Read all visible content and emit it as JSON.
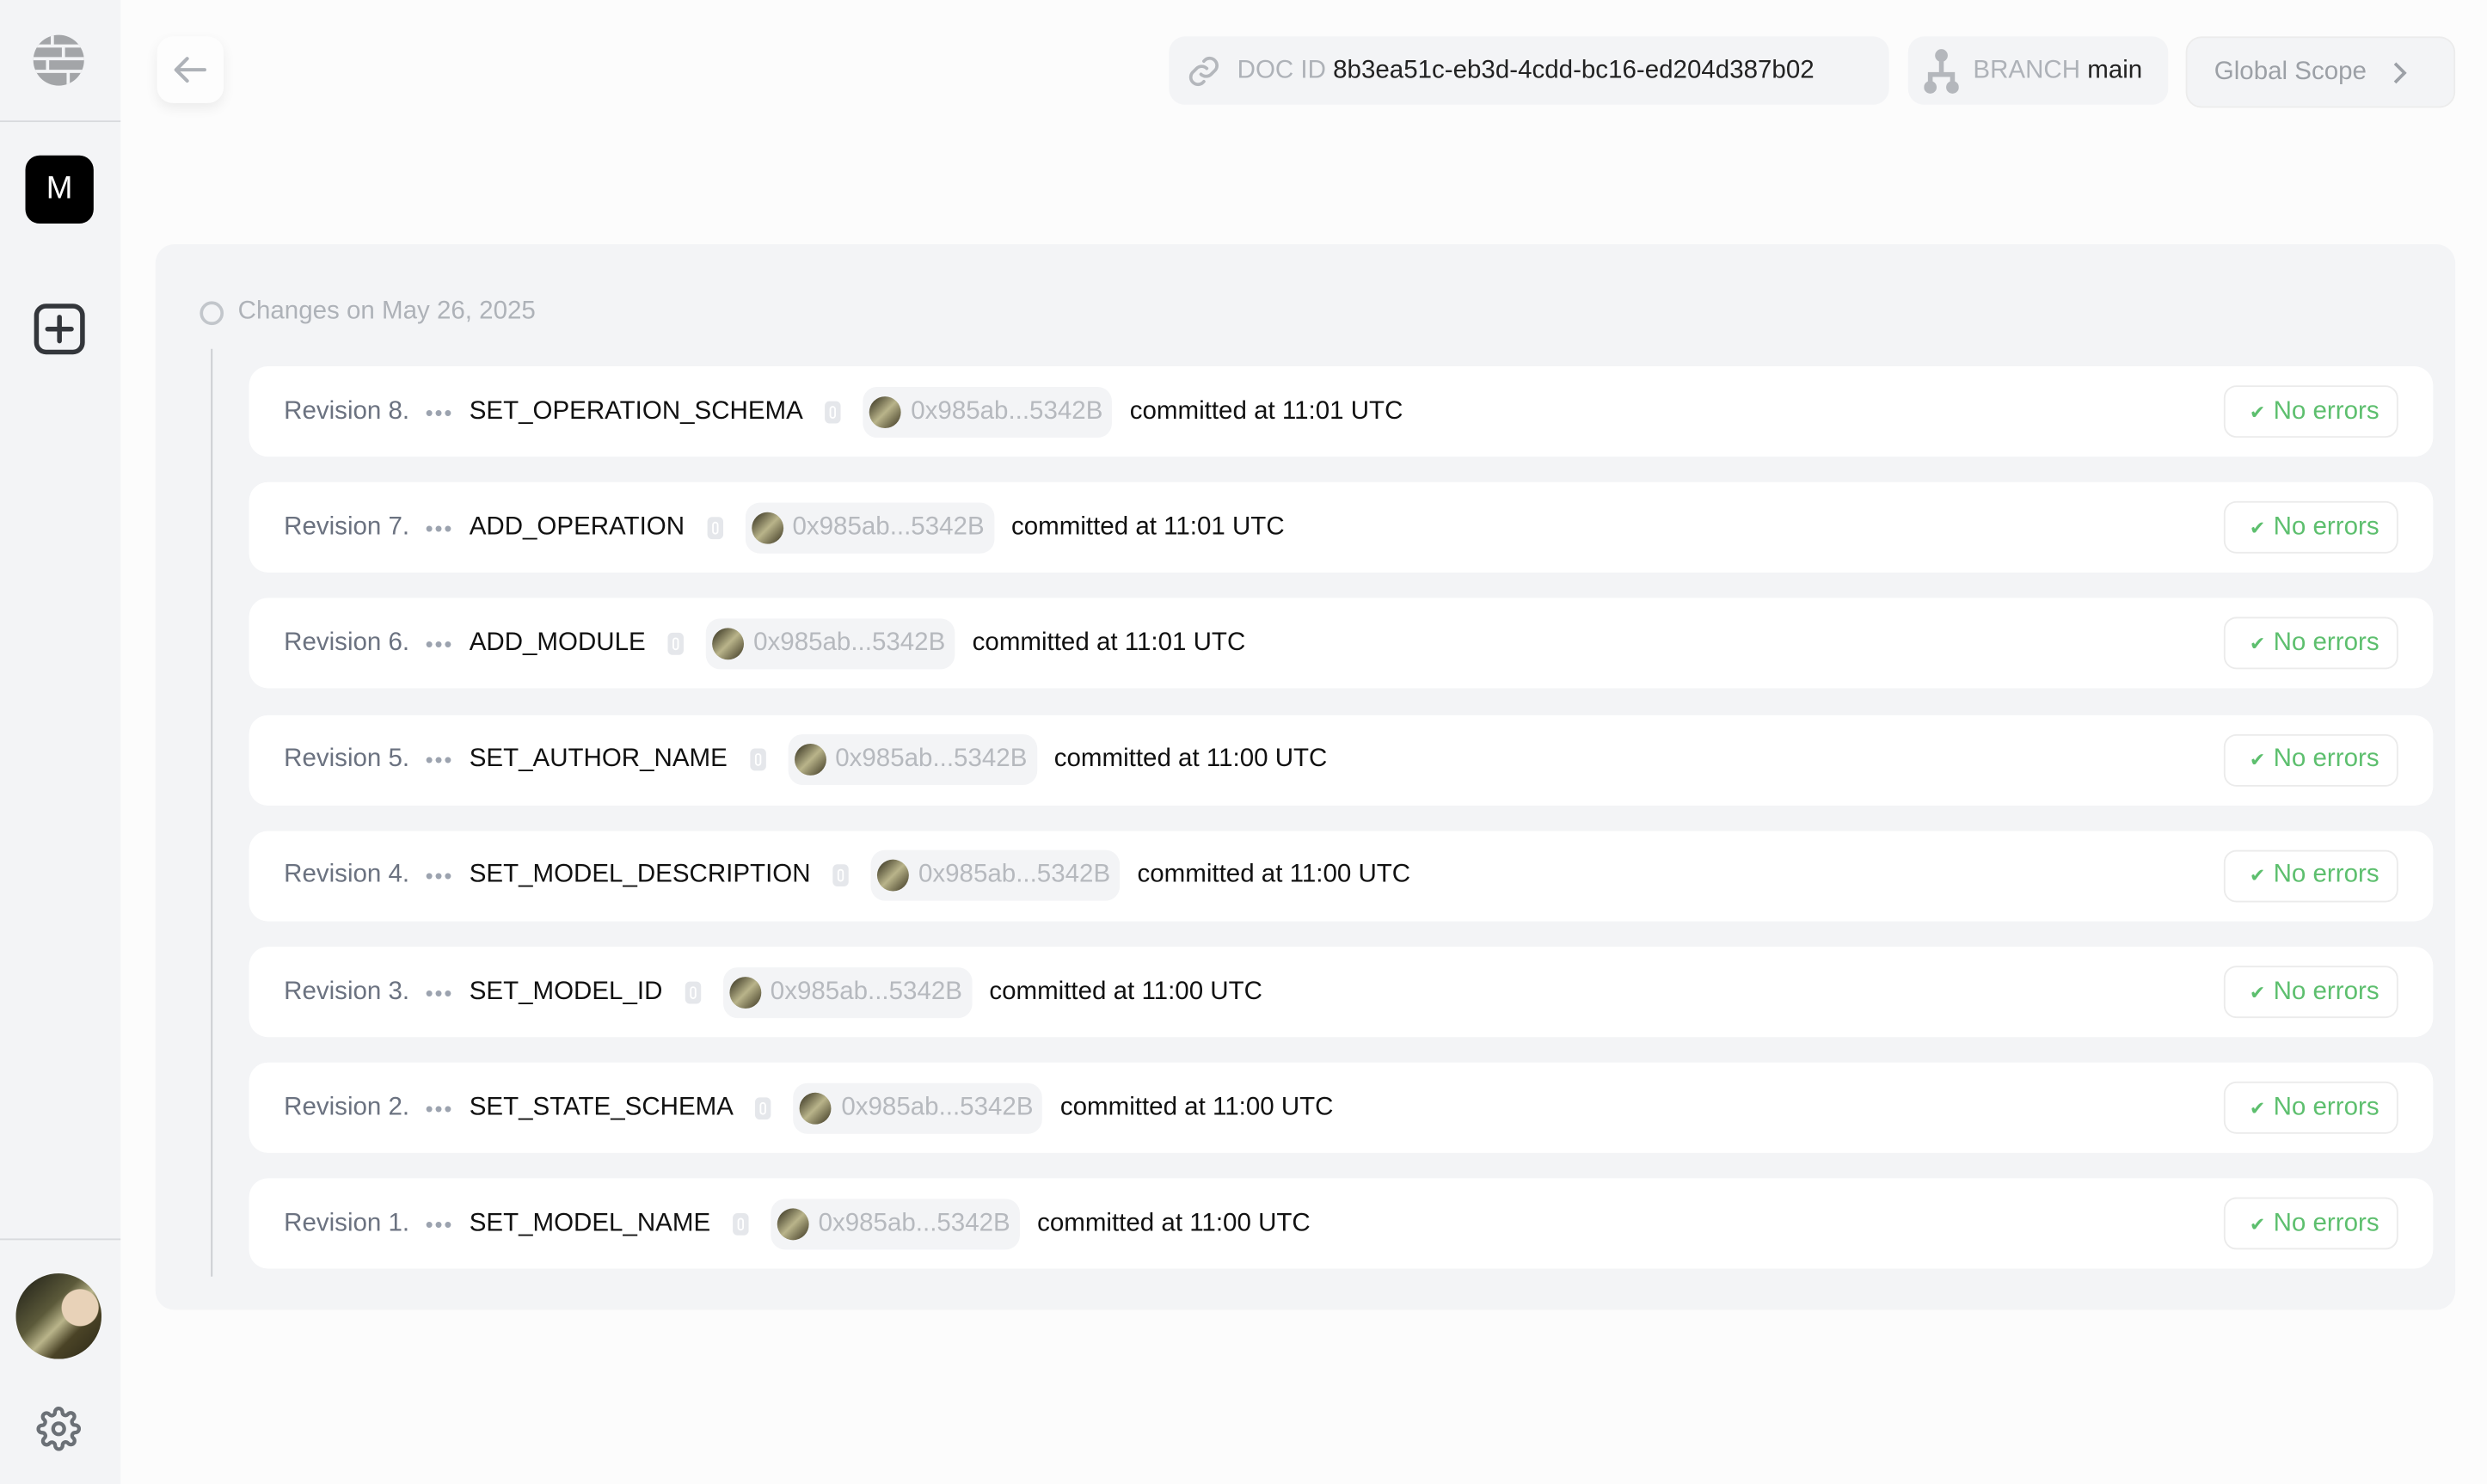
{
  "sidebar": {
    "workspace_letter": "M"
  },
  "header": {
    "doc_id_label": "DOC ID",
    "doc_id": "8b3ea51c-eb3d-4cdd-bc16-ed204d387b02",
    "branch_label": "BRANCH",
    "branch": "main",
    "scope": "Global Scope"
  },
  "history": {
    "group_title": "Changes on May 26, 2025",
    "status_color": "#5dbf6e",
    "revisions": [
      {
        "label": "Revision 8.",
        "operation": "SET_OPERATION_SCHEMA",
        "address": "0x985ab...5342B",
        "committed": "committed at 11:01 UTC",
        "status": "No errors"
      },
      {
        "label": "Revision 7.",
        "operation": "ADD_OPERATION",
        "address": "0x985ab...5342B",
        "committed": "committed at 11:01 UTC",
        "status": "No errors"
      },
      {
        "label": "Revision 6.",
        "operation": "ADD_MODULE",
        "address": "0x985ab...5342B",
        "committed": "committed at 11:01 UTC",
        "status": "No errors"
      },
      {
        "label": "Revision 5.",
        "operation": "SET_AUTHOR_NAME",
        "address": "0x985ab...5342B",
        "committed": "committed at 11:00 UTC",
        "status": "No errors"
      },
      {
        "label": "Revision 4.",
        "operation": "SET_MODEL_DESCRIPTION",
        "address": "0x985ab...5342B",
        "committed": "committed at 11:00 UTC",
        "status": "No errors"
      },
      {
        "label": "Revision 3.",
        "operation": "SET_MODEL_ID",
        "address": "0x985ab...5342B",
        "committed": "committed at 11:00 UTC",
        "status": "No errors"
      },
      {
        "label": "Revision 2.",
        "operation": "SET_STATE_SCHEMA",
        "address": "0x985ab...5342B",
        "committed": "committed at 11:00 UTC",
        "status": "No errors"
      },
      {
        "label": "Revision 1.",
        "operation": "SET_MODEL_NAME",
        "address": "0x985ab...5342B",
        "committed": "committed at 11:00 UTC",
        "status": "No errors"
      }
    ]
  }
}
